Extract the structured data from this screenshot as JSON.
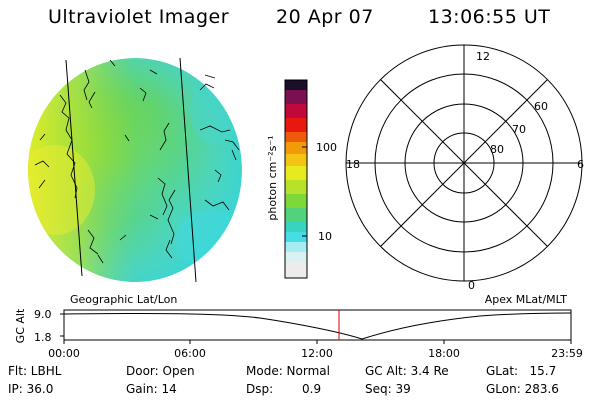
{
  "header": {
    "title": "Ultraviolet Imager",
    "date": "20 Apr 07",
    "time": "13:06:55 UT"
  },
  "colorbar": {
    "unit_label": "photon cm⁻²s⁻¹",
    "ticks": [
      "100",
      "10"
    ]
  },
  "polar": {
    "mlt_labels": {
      "top": "12",
      "left": "18",
      "right": "6",
      "bottom": "0"
    },
    "lat_labels": [
      "60",
      "70",
      "80"
    ]
  },
  "timeline": {
    "left_title": "Geographic Lat/Lon",
    "right_title": "Apex MLat/MLT",
    "yaxis_label": "GC Alt",
    "ytick_top": "9.0",
    "ytick_bottom": "1.8",
    "xticks": [
      "00:00",
      "06:00",
      "12:00",
      "18:00",
      "23:59"
    ],
    "marker_color": "#e00000"
  },
  "info": {
    "flt": "Flt: LBHL",
    "ip": "IP: 36.0",
    "door": "Door: Open",
    "gain": "Gain: 14",
    "mode": "Mode: Normal",
    "dsp_label": "Dsp:",
    "dsp_value": "0.9",
    "gcalt": "GC Alt: 3.4 Re",
    "seq": "Seq: 39",
    "glat": "GLat:   15.7",
    "glon": "GLon: 283.6"
  }
}
